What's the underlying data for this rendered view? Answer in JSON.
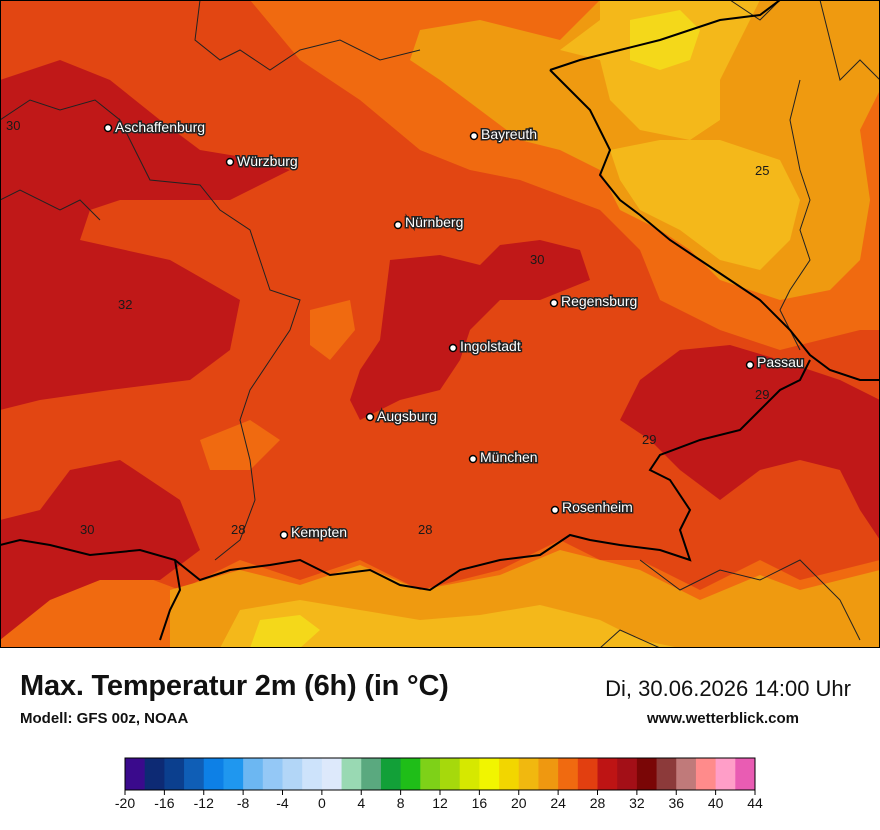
{
  "map": {
    "title": "Max. Temperatur 2m (6h) (in °C)",
    "model": "Modell: GFS 00z, NOAA",
    "datetime": "Di, 30.06.2026 14:00 Uhr",
    "website": "www.wetterblick.com",
    "colors": {
      "t25": "#ef9a10",
      "t27": "#f06a10",
      "t29": "#e24612",
      "t31": "#c01818",
      "t23": "#f4b81a",
      "t21": "#f4d81a"
    },
    "cities": [
      {
        "name": "Aschaffenburg"
      },
      {
        "name": "Würzburg"
      },
      {
        "name": "Bayreuth"
      },
      {
        "name": "Nürnberg"
      },
      {
        "name": "Regensburg"
      },
      {
        "name": "Ingolstadt"
      },
      {
        "name": "Passau"
      },
      {
        "name": "Augsburg"
      },
      {
        "name": "München"
      },
      {
        "name": "Rosenheim"
      },
      {
        "name": "Kempten"
      }
    ],
    "contour_labels": [
      "30",
      "25",
      "30",
      "32",
      "29",
      "29",
      "30",
      "28",
      "28"
    ]
  },
  "legend": {
    "ticks": [
      "-20",
      "-16",
      "-12",
      "-8",
      "-4",
      "0",
      "4",
      "8",
      "12",
      "16",
      "20",
      "24",
      "28",
      "32",
      "36",
      "40",
      "44"
    ],
    "colors": [
      "#3a0a8c",
      "#0d2a74",
      "#0b3f8e",
      "#0f5eb6",
      "#0d80e6",
      "#1f97ef",
      "#6cb7f2",
      "#94c8f6",
      "#b2d6f7",
      "#cde3fb",
      "#dde9fb",
      "#99d9b3",
      "#5aa97f",
      "#12a038",
      "#1fbe18",
      "#7ed118",
      "#a6d90c",
      "#d6e800",
      "#f1f500",
      "#f2d600",
      "#f1b80f",
      "#ef9810",
      "#f06a10",
      "#e23f10",
      "#be1414",
      "#a30f17",
      "#7a0606",
      "#8c3a3a",
      "#c07a7a",
      "#ff8b8b",
      "#ff9ec8",
      "#e95cb3"
    ]
  }
}
